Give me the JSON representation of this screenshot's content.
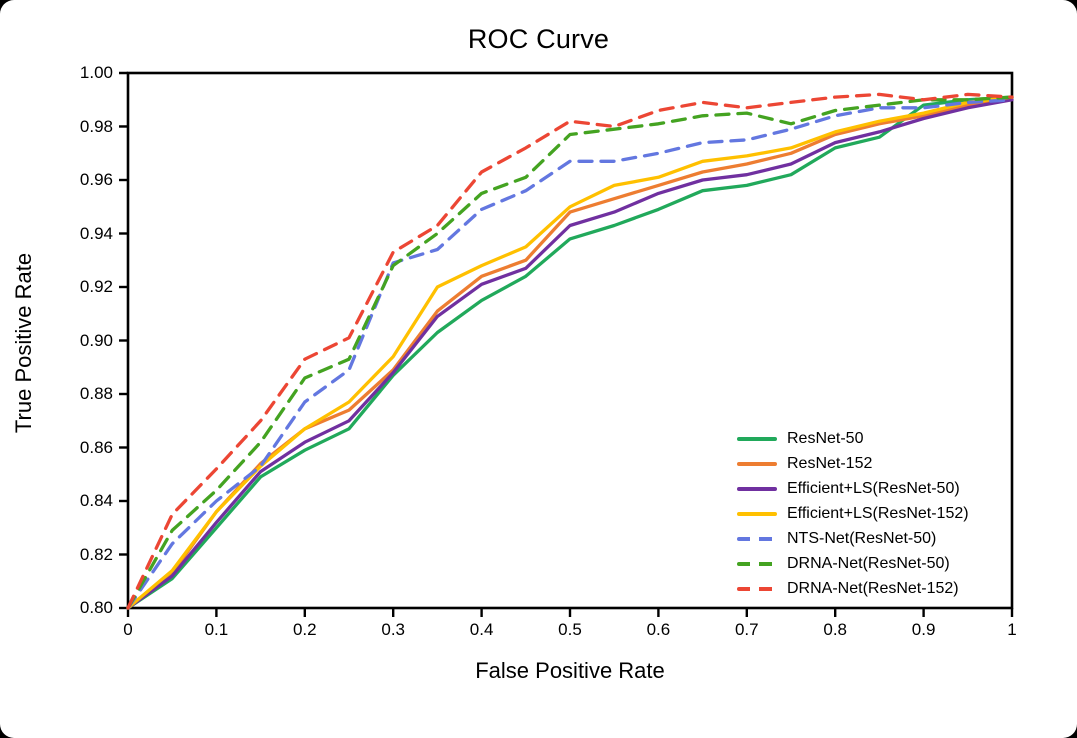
{
  "title": "ROC Curve",
  "axes": {
    "x_label": "False Positive Rate",
    "y_label": "True Positive Rate",
    "x_ticks": [
      "0",
      "0.1",
      "0.2",
      "0.3",
      "0.4",
      "0.5",
      "0.6",
      "0.7",
      "0.8",
      "0.9",
      "1"
    ],
    "y_ticks": [
      "0.80",
      "0.82",
      "0.84",
      "0.86",
      "0.88",
      "0.90",
      "0.92",
      "0.94",
      "0.96",
      "0.98",
      "1.00"
    ]
  },
  "chart_data": {
    "type": "line",
    "title": "ROC Curve",
    "xlabel": "False Positive Rate",
    "ylabel": "True Positive Rate",
    "xlim": [
      0,
      1
    ],
    "ylim": [
      0.8,
      1.0
    ],
    "grid": false,
    "legend_position": "inside-right",
    "x": [
      0,
      0.05,
      0.1,
      0.15,
      0.2,
      0.25,
      0.3,
      0.35,
      0.4,
      0.45,
      0.5,
      0.55,
      0.6,
      0.65,
      0.7,
      0.75,
      0.8,
      0.85,
      0.9,
      0.95,
      1.0
    ],
    "series": [
      {
        "name": "ResNet-50",
        "color": "#21a95b",
        "style": "solid",
        "values": [
          0.8,
          0.811,
          0.83,
          0.849,
          0.859,
          0.867,
          0.887,
          0.903,
          0.915,
          0.924,
          0.938,
          0.943,
          0.949,
          0.956,
          0.958,
          0.962,
          0.972,
          0.976,
          0.988,
          0.99,
          0.991
        ]
      },
      {
        "name": "ResNet-152",
        "color": "#ed7d31",
        "style": "solid",
        "values": [
          0.8,
          0.813,
          0.836,
          0.854,
          0.867,
          0.874,
          0.889,
          0.911,
          0.924,
          0.93,
          0.948,
          0.953,
          0.958,
          0.963,
          0.966,
          0.97,
          0.977,
          0.981,
          0.984,
          0.988,
          0.991
        ]
      },
      {
        "name": "Efficient+LS(ResNet-50)",
        "color": "#7030a0",
        "style": "solid",
        "values": [
          0.8,
          0.812,
          0.832,
          0.851,
          0.862,
          0.87,
          0.888,
          0.909,
          0.921,
          0.927,
          0.943,
          0.948,
          0.955,
          0.96,
          0.962,
          0.966,
          0.974,
          0.978,
          0.983,
          0.987,
          0.99
        ]
      },
      {
        "name": "Efficient+LS(ResNet-152)",
        "color": "#ffc000",
        "style": "solid",
        "values": [
          0.8,
          0.814,
          0.836,
          0.853,
          0.867,
          0.877,
          0.894,
          0.92,
          0.928,
          0.935,
          0.95,
          0.958,
          0.961,
          0.967,
          0.969,
          0.972,
          0.978,
          0.982,
          0.985,
          0.989,
          0.991
        ]
      },
      {
        "name": "NTS-Net(ResNet-50)",
        "color": "#6377e0",
        "style": "dashed",
        "values": [
          0.8,
          0.824,
          0.84,
          0.853,
          0.877,
          0.889,
          0.929,
          0.934,
          0.949,
          0.956,
          0.967,
          0.967,
          0.97,
          0.974,
          0.975,
          0.979,
          0.984,
          0.987,
          0.987,
          0.989,
          0.99
        ]
      },
      {
        "name": "DRNA-Net(ResNet-50)",
        "color": "#44a321",
        "style": "dashed",
        "values": [
          0.8,
          0.829,
          0.844,
          0.862,
          0.886,
          0.893,
          0.928,
          0.94,
          0.955,
          0.961,
          0.977,
          0.979,
          0.981,
          0.984,
          0.985,
          0.981,
          0.986,
          0.988,
          0.99,
          0.99,
          0.991
        ]
      },
      {
        "name": "DRNA-Net(ResNet-152)",
        "color": "#ec4634",
        "style": "dashed",
        "values": [
          0.8,
          0.835,
          0.852,
          0.87,
          0.893,
          0.901,
          0.933,
          0.943,
          0.963,
          0.972,
          0.982,
          0.98,
          0.986,
          0.989,
          0.987,
          0.989,
          0.991,
          0.992,
          0.99,
          0.992,
          0.991
        ]
      }
    ]
  }
}
